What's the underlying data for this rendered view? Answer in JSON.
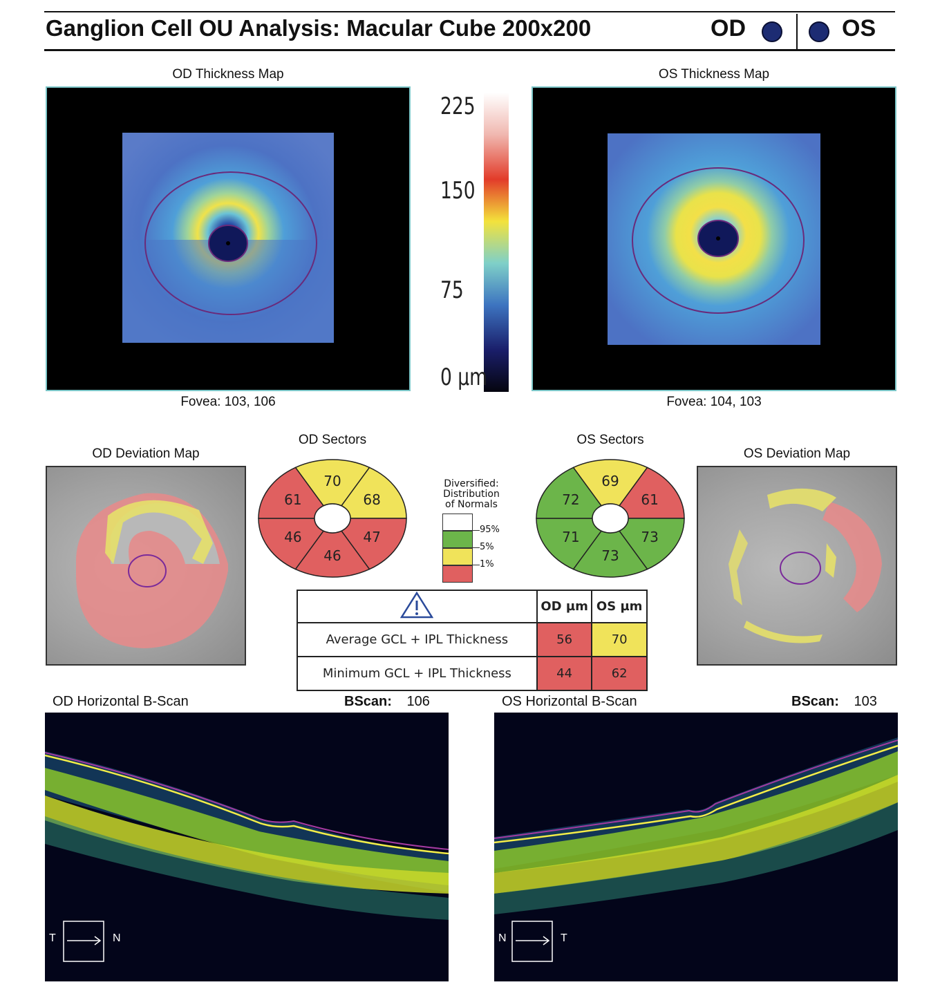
{
  "header": {
    "title": "Ganglion Cell OU Analysis: Macular Cube 200x200",
    "od_label": "OD",
    "os_label": "OS"
  },
  "thickness_maps": {
    "od": {
      "title": "OD Thickness Map",
      "fovea": "Fovea: 103, 106"
    },
    "os": {
      "title": "OS Thickness Map",
      "fovea": "Fovea: 104, 103"
    }
  },
  "color_scale": {
    "ticks": [
      "225",
      "150",
      "75",
      "0 µm"
    ],
    "colors": [
      "#ffffff",
      "#f0b8b0",
      "#e23c2a",
      "#f3e23c",
      "#7fd0c8",
      "#3d74c0",
      "#1a1e6a",
      "#05050f"
    ]
  },
  "sectors": {
    "od": {
      "title": "OD Sectors",
      "values": [
        "70",
        "68",
        "47",
        "46",
        "46",
        "61"
      ],
      "colors": [
        "#f0e35a",
        "#f0e35a",
        "#e06060",
        "#e06060",
        "#e06060",
        "#e06060"
      ]
    },
    "os": {
      "title": "OS Sectors",
      "values": [
        "69",
        "61",
        "73",
        "73",
        "71",
        "72"
      ],
      "colors": [
        "#f0e35a",
        "#e06060",
        "#6cb54a",
        "#6cb54a",
        "#6cb54a",
        "#6cb54a"
      ]
    }
  },
  "legend": {
    "title_lines": [
      "Diversified:",
      "Distribution",
      "of Normals"
    ],
    "ticks": [
      "95%",
      "5%",
      "1%"
    ],
    "colors": [
      "#ffffff",
      "#6cb54a",
      "#f0e35a",
      "#e06060"
    ]
  },
  "deviation_maps": {
    "od": {
      "title": "OD Deviation Map"
    },
    "os": {
      "title": "OS Deviation Map"
    }
  },
  "metrics": {
    "headers": [
      "OD µm",
      "OS µm"
    ],
    "rows": [
      {
        "label": "Average GCL + IPL Thickness",
        "od": "56",
        "os": "70",
        "od_color": "#e06060",
        "os_color": "#f0e35a"
      },
      {
        "label": "Minimum GCL + IPL Thickness",
        "od": "44",
        "os": "62",
        "od_color": "#e06060",
        "os_color": "#e06060"
      }
    ]
  },
  "bscans": {
    "od": {
      "title": "OD Horizontal B-Scan",
      "bscan_label": "BScan:",
      "bscan_value": "106",
      "left_dir": "T",
      "right_dir": "N"
    },
    "os": {
      "title": "OS Horizontal B-Scan",
      "bscan_label": "BScan:",
      "bscan_value": "103",
      "left_dir": "N",
      "right_dir": "T"
    }
  }
}
